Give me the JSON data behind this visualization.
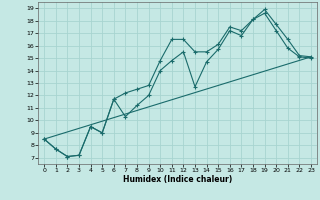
{
  "xlabel": "Humidex (Indice chaleur)",
  "xlim": [
    -0.5,
    23.5
  ],
  "ylim": [
    6.5,
    19.5
  ],
  "xticks": [
    0,
    1,
    2,
    3,
    4,
    5,
    6,
    7,
    8,
    9,
    10,
    11,
    12,
    13,
    14,
    15,
    16,
    17,
    18,
    19,
    20,
    21,
    22,
    23
  ],
  "yticks": [
    7,
    8,
    9,
    10,
    11,
    12,
    13,
    14,
    15,
    16,
    17,
    18,
    19
  ],
  "bg_color": "#c5e8e4",
  "grid_color": "#a8d4d0",
  "line_color": "#1a6b6b",
  "line1_x": [
    0,
    1,
    2,
    3,
    4,
    5,
    6,
    7,
    8,
    9,
    10,
    11,
    12,
    13,
    14,
    15,
    16,
    17,
    18,
    19,
    20,
    21,
    22,
    23
  ],
  "line1_y": [
    8.5,
    7.7,
    7.1,
    7.2,
    9.5,
    9.0,
    11.7,
    12.2,
    12.5,
    12.8,
    14.8,
    16.5,
    16.5,
    15.5,
    15.5,
    16.1,
    17.5,
    17.2,
    18.1,
    18.9,
    17.7,
    16.5,
    15.2,
    15.1
  ],
  "line2_x": [
    0,
    1,
    2,
    3,
    4,
    5,
    6,
    7,
    8,
    9,
    10,
    11,
    12,
    13,
    14,
    15,
    16,
    17,
    18,
    19,
    20,
    21,
    22,
    23
  ],
  "line2_y": [
    8.5,
    7.7,
    7.1,
    7.2,
    9.5,
    9.0,
    11.7,
    10.3,
    11.2,
    12.0,
    14.0,
    14.8,
    15.5,
    12.7,
    14.7,
    15.7,
    17.2,
    16.8,
    18.1,
    18.6,
    17.2,
    15.8,
    15.1,
    15.0
  ],
  "line3_x": [
    0,
    23
  ],
  "line3_y": [
    8.5,
    15.1
  ]
}
